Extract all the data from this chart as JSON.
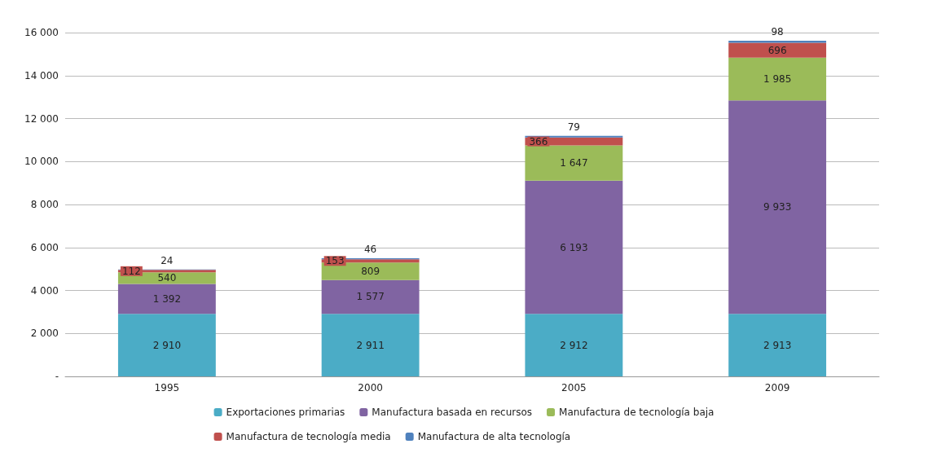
{
  "chart_data": {
    "type": "bar",
    "stacked": true,
    "categories": [
      "1995",
      "2000",
      "2005",
      "2009"
    ],
    "series": [
      {
        "name": "Exportaciones primarias",
        "color": "#4bacc6",
        "values": [
          2910,
          2911,
          2912,
          2913
        ],
        "value_labels": [
          "2 910",
          "2 911",
          "2 912",
          "2 913"
        ]
      },
      {
        "name": "Manufactura basada en recursos",
        "color": "#8064a2",
        "values": [
          1392,
          1577,
          6193,
          9933
        ],
        "value_labels": [
          "1 392",
          "1 577",
          "6 193",
          "9 933"
        ]
      },
      {
        "name": "Manufactura de tecnología baja",
        "color": "#9bbb59",
        "values": [
          540,
          809,
          1647,
          1985
        ],
        "value_labels": [
          "540",
          "809",
          "1 647",
          "1 985"
        ]
      },
      {
        "name": "Manufactura de tecnología media",
        "color": "#c0504d",
        "values": [
          112,
          153,
          366,
          696
        ],
        "value_labels": [
          "112",
          "153",
          "366",
          "696"
        ]
      },
      {
        "name": "Manufactura de alta tecnología",
        "color": "#4f81bd",
        "values": [
          24,
          46,
          79,
          98
        ],
        "value_labels": [
          "24",
          "46",
          "79",
          "98"
        ]
      }
    ],
    "ylim": [
      0,
      16000
    ],
    "yticks": [
      {
        "value": 0,
        "label": "-"
      },
      {
        "value": 2000,
        "label": "2 000"
      },
      {
        "value": 4000,
        "label": "4 000"
      },
      {
        "value": 6000,
        "label": "6 000"
      },
      {
        "value": 8000,
        "label": "8 000"
      },
      {
        "value": 10000,
        "label": "10 000"
      },
      {
        "value": 12000,
        "label": "12 000"
      },
      {
        "value": 14000,
        "label": "14 000"
      },
      {
        "value": 16000,
        "label": "16 000"
      }
    ],
    "grid": "y",
    "legend": "bottom"
  }
}
